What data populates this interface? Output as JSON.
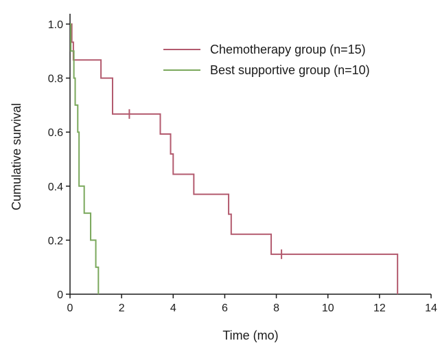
{
  "chart_data": {
    "type": "line",
    "subtype": "kaplan-meier-step",
    "title": "",
    "xlabel": "Time (mo)",
    "ylabel": "Cumulative survival",
    "xlim": [
      0,
      14
    ],
    "ylim": [
      0,
      1.0
    ],
    "xticks": [
      0,
      2,
      4,
      6,
      8,
      10,
      12,
      14
    ],
    "yticks": [
      0,
      0.2,
      0.4,
      0.6,
      0.8,
      1.0
    ],
    "ytick_labels": [
      "0",
      "0.2",
      "0.4",
      "0.6",
      "0.8",
      "1.0"
    ],
    "grid": false,
    "legend_position": "top-right",
    "series": [
      {
        "name": "Chemotherapy group (n=15)",
        "color": "#b35a6e",
        "steps": [
          [
            0,
            1.0
          ],
          [
            0.07,
            0.933
          ],
          [
            0.13,
            0.867
          ],
          [
            1.2,
            0.8
          ],
          [
            1.65,
            0.667
          ],
          [
            3.5,
            0.593
          ],
          [
            3.9,
            0.519
          ],
          [
            4.0,
            0.444
          ],
          [
            4.8,
            0.37
          ],
          [
            6.15,
            0.296
          ],
          [
            6.25,
            0.222
          ],
          [
            7.8,
            0.148
          ],
          [
            12.7,
            0.0
          ]
        ],
        "end_x": 12.7,
        "censored": [
          [
            2.3,
            0.667
          ],
          [
            8.2,
            0.148
          ]
        ]
      },
      {
        "name": "Best supportive group (n=10)",
        "color": "#7aa85c",
        "steps": [
          [
            0,
            1.0
          ],
          [
            0.03,
            0.9
          ],
          [
            0.15,
            0.8
          ],
          [
            0.2,
            0.7
          ],
          [
            0.3,
            0.6
          ],
          [
            0.35,
            0.4
          ],
          [
            0.55,
            0.3
          ],
          [
            0.8,
            0.2
          ],
          [
            1.0,
            0.1
          ],
          [
            1.1,
            0.0
          ]
        ],
        "end_x": 1.1,
        "censored": []
      }
    ]
  }
}
